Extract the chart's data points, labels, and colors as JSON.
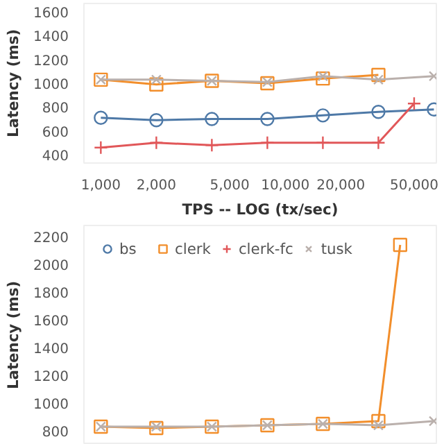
{
  "chart_data": [
    {
      "type": "line",
      "xlabel": "TPS -- LOG (tx/sec)",
      "ylabel": "Latency (ms)",
      "log": "x",
      "grid": false,
      "legend": false,
      "xlim": [
        810,
        66000
      ],
      "ylim": [
        330,
        1670
      ],
      "xticks": [
        {
          "value": 1000,
          "label": "1,000"
        },
        {
          "value": 2000,
          "label": "2,000"
        },
        {
          "value": 5000,
          "label": "5,000"
        },
        {
          "value": 10000,
          "label": "10,000"
        },
        {
          "value": 20000,
          "label": "20,000"
        },
        {
          "value": 50000,
          "label": "50,000"
        }
      ],
      "yticks": [
        400,
        600,
        800,
        1000,
        1200,
        1400,
        1600
      ],
      "series": [
        {
          "color": "#4e79a7",
          "marker": "circle",
          "x": [
            1000,
            2000,
            4000,
            8000,
            16000,
            32000,
            64000
          ],
          "values": [
            710,
            690,
            700,
            700,
            730,
            760,
            780
          ]
        },
        {
          "color": "#f28e2b",
          "marker": "square",
          "x": [
            1000,
            2000,
            4000,
            8000,
            16000,
            32000
          ],
          "values": [
            1030,
            990,
            1020,
            1000,
            1040,
            1070
          ]
        },
        {
          "color": "#e15759",
          "marker": "cross",
          "x": [
            1000,
            2000,
            4000,
            8000,
            16000,
            32000,
            50000
          ],
          "values": [
            460,
            500,
            480,
            500,
            500,
            500,
            830
          ]
        },
        {
          "color": "#bab0ac",
          "marker": "x",
          "x": [
            1000,
            2000,
            4000,
            8000,
            16000,
            32000,
            64000
          ],
          "values": [
            1030,
            1030,
            1020,
            1010,
            1060,
            1030,
            1060
          ]
        }
      ]
    },
    {
      "type": "line",
      "ylabel": "Latency (ms)",
      "log": "x",
      "grid": false,
      "legend": "top left",
      "tick_labels": "y",
      "xlim": [
        810,
        66000
      ],
      "ylim": [
        700,
        2280
      ],
      "yticks": [
        800,
        1000,
        1200,
        1400,
        1600,
        1800,
        2000,
        2200
      ],
      "series": [
        {
          "name": "bs",
          "color": "#4e79a7",
          "marker": "circle",
          "values": [
            null
          ]
        },
        {
          "name": "clerk",
          "color": "#f28e2b",
          "marker": "square",
          "x": [
            1000,
            2000,
            4000,
            8000,
            16000,
            32000,
            42000
          ],
          "values": [
            830,
            820,
            830,
            840,
            850,
            870,
            2140
          ]
        },
        {
          "name": "clerk-fc",
          "color": "#e15759",
          "marker": "cross",
          "values": [
            null
          ]
        },
        {
          "name": "tusk",
          "color": "#bab0ac",
          "marker": "x",
          "x": [
            1000,
            2000,
            4000,
            8000,
            16000,
            32000,
            64000
          ],
          "values": [
            830,
            830,
            830,
            840,
            850,
            840,
            870
          ]
        }
      ]
    }
  ]
}
